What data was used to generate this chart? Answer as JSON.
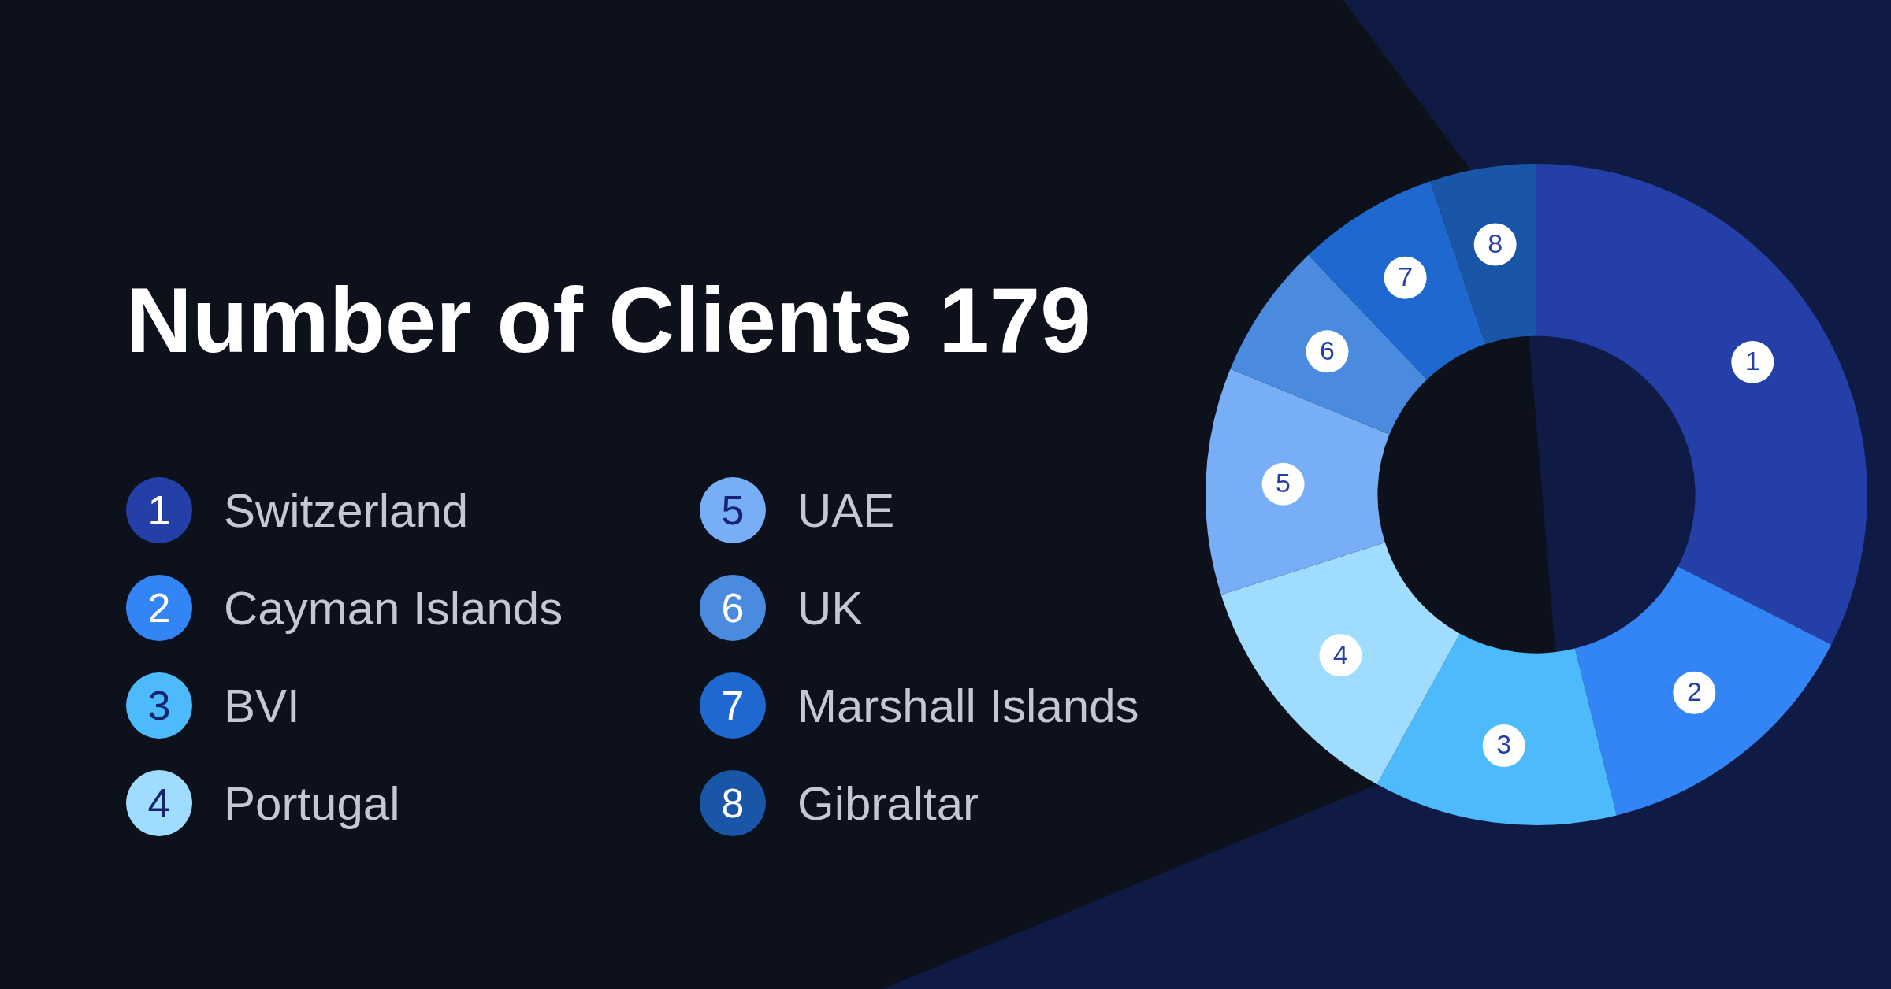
{
  "chart_data": {
    "type": "donut",
    "title": "Number of Clients 179",
    "categories": [
      "Switzerland",
      "Cayman Islands",
      "BVI",
      "Portugal",
      "UAE",
      "UK",
      "Marshall Islands",
      "Gibraltar"
    ],
    "values": [
      32.5,
      13.6,
      11.9,
      12.1,
      11.1,
      6.7,
      6.9,
      5.2
    ],
    "colors": [
      "#2440a8",
      "#3384f5",
      "#4dbbfb",
      "#a0dcfd",
      "#77aef5",
      "#4a8be0",
      "#1e68d0",
      "#1a56a8"
    ],
    "annotations": [
      "1",
      "2",
      "3",
      "4",
      "5",
      "6",
      "7",
      "8"
    ],
    "legend": "left"
  }
}
